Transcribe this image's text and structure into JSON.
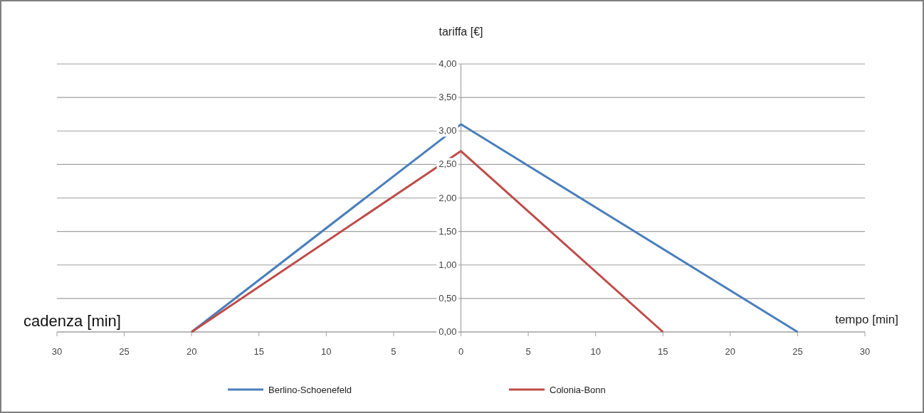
{
  "chart_data": {
    "type": "line",
    "ylabel": "tariffa [€]",
    "xlabel": "tempo [min]",
    "annotations": [
      "cadenza [min]"
    ],
    "xlim": [
      -30,
      30
    ],
    "xticks": [
      {
        "value": -30,
        "label": "30"
      },
      {
        "value": -25,
        "label": "25"
      },
      {
        "value": -20,
        "label": "20"
      },
      {
        "value": -15,
        "label": "15"
      },
      {
        "value": -10,
        "label": "10"
      },
      {
        "value": -5,
        "label": "5"
      },
      0,
      5,
      10,
      15,
      20,
      25,
      30
    ],
    "ylim": [
      0,
      4
    ],
    "yticks": [
      {
        "value": 0,
        "label": "0,00"
      },
      {
        "value": 0.5,
        "label": "0,50"
      },
      {
        "value": 1,
        "label": "1,00"
      },
      {
        "value": 1.5,
        "label": "1,50"
      },
      {
        "value": 2,
        "label": "2,00"
      },
      {
        "value": 2.5,
        "label": "2,50"
      },
      {
        "value": 3,
        "label": "3,00"
      },
      {
        "value": 3.5,
        "label": "3,50"
      },
      {
        "value": 4,
        "label": "4,00"
      }
    ],
    "grid": "y",
    "legend": "bottom",
    "marker": "none",
    "line_style": "solid",
    "series": [
      {
        "name": "Berlino-Schoenefeld",
        "color": "#4a7ebb",
        "x": [
          -20,
          0,
          25
        ],
        "values": [
          0,
          3.1,
          0
        ]
      },
      {
        "name": "Colonia-Bonn",
        "color": "#be4b48",
        "x": [
          -20,
          0,
          15
        ],
        "values": [
          0,
          2.7,
          0
        ]
      }
    ]
  }
}
